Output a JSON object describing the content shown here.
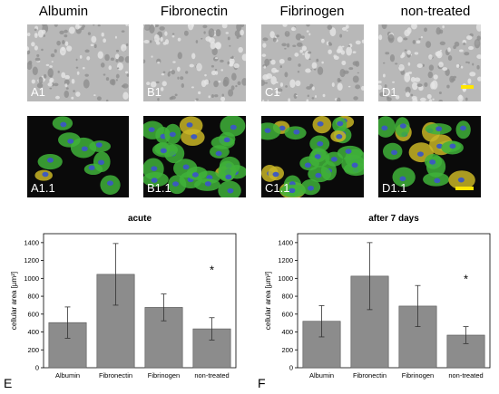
{
  "columns": [
    "Albumin",
    "Fibronectin",
    "Fibrinogen",
    "non-treated"
  ],
  "phase_labels": [
    "A1",
    "B1",
    "C1",
    "D1"
  ],
  "fluor_labels": [
    "A1.1",
    "B1.1",
    "C1.1",
    "D1.1"
  ],
  "colors": {
    "bar": "#8c8c8c",
    "scalebar": "#ffe600",
    "phase_bg": "#b8b8b8",
    "fluor_bg": "#0a0a0a"
  },
  "charts": [
    {
      "panel": "E",
      "title": "acute",
      "ylabel": "cellular area [µm²]",
      "annotation": "*"
    },
    {
      "panel": "F",
      "title": "after 7 days",
      "ylabel": "cellular area [µm²]",
      "annotation": "*"
    }
  ],
  "chart_data": [
    {
      "type": "bar",
      "title": "acute",
      "ylabel": "cellular area [µm²]",
      "ylim": [
        0,
        1500
      ],
      "yticks": [
        "0",
        "200",
        "400",
        "600",
        "800",
        "1000",
        "1200",
        "1400"
      ],
      "categories": [
        "Albumin",
        "Fibronectin",
        "Fibrinogen",
        "non-treated"
      ],
      "values": [
        505,
        1045,
        675,
        435
      ],
      "errors": [
        175,
        345,
        150,
        125
      ],
      "annotation": "*"
    },
    {
      "type": "bar",
      "title": "after 7 days",
      "ylabel": "cellular area [µm²]",
      "ylim": [
        0,
        1500
      ],
      "yticks": [
        "0",
        "200",
        "400",
        "600",
        "800",
        "1000",
        "1200",
        "1400"
      ],
      "categories": [
        "Albumin",
        "Fibronectin",
        "Fibrinogen",
        "non-treated"
      ],
      "values": [
        520,
        1025,
        690,
        365
      ],
      "errors": [
        175,
        375,
        230,
        95
      ],
      "annotation": "*"
    }
  ]
}
